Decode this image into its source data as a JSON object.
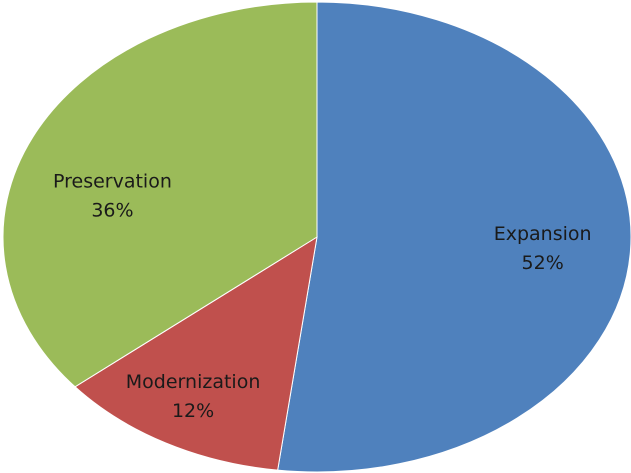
{
  "chart_data": {
    "type": "pie",
    "categories": [
      "Expansion",
      "Modernization",
      "Preservation"
    ],
    "values": [
      52,
      12,
      36
    ],
    "value_labels": [
      "52%",
      "12%",
      "36%"
    ],
    "colors": [
      "#4f81bd",
      "#c0504d",
      "#9bbb59"
    ]
  }
}
